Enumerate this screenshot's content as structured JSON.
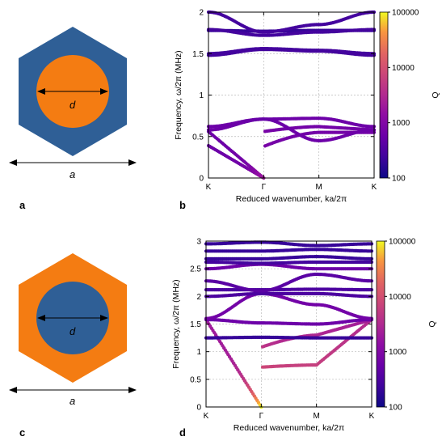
{
  "panels": {
    "a": "a",
    "b": "b",
    "c": "c",
    "d": "d"
  },
  "unit_cells": [
    {
      "id": "a",
      "hexagon_color": "#2f5f96",
      "inclusion_color": "#f47c12",
      "inner_label": "d",
      "outer_label": "a",
      "inclusion_diameter_ratio": 0.56
    },
    {
      "id": "c",
      "hexagon_color": "#f47c12",
      "inclusion_color": "#2f5f96",
      "inner_label": "d",
      "outer_label": "a",
      "inclusion_diameter_ratio": 0.56
    }
  ],
  "colorbar": {
    "label": "Q",
    "ticks": [
      "100000",
      "10000",
      "1000",
      "100"
    ],
    "range": [
      100,
      100000
    ],
    "scale": "log",
    "colormap": "plasma"
  },
  "chart_data": [
    {
      "id": "b",
      "type": "scatter",
      "xlabel": "Reduced wavenumber, ka/2π",
      "ylabel": "Frequency, ω/2π (MHz)",
      "x_tick_labels": [
        "K",
        "Γ",
        "M",
        "K"
      ],
      "x_tick_positions": [
        0,
        1,
        2,
        3
      ],
      "xlim": [
        0,
        3
      ],
      "ylim": [
        0,
        2
      ],
      "y_ticks": [
        "0",
        "0.5",
        "1",
        "1.5",
        "2"
      ],
      "y_tick_values": [
        0,
        0.5,
        1,
        1.5,
        2
      ],
      "grid": true,
      "bands": [
        {
          "y": [
            0.39,
            0.0,
            0.38,
            0.55,
            0.55
          ],
          "q": [
            600,
            2000,
            800,
            700,
            700
          ]
        },
        {
          "y": [
            0.56,
            0.0,
            0.56,
            0.62,
            0.58
          ],
          "q": [
            600,
            2000,
            800,
            700,
            700
          ]
        },
        {
          "y": [
            0.58,
            0.71,
            0.71,
            0.45,
            0.58
          ],
          "q": [
            600,
            500,
            500,
            600,
            600
          ]
        },
        {
          "y": [
            0.62,
            0.71,
            0.71,
            0.72,
            0.62
          ],
          "q": [
            600,
            500,
            500,
            600,
            600
          ]
        },
        {
          "y": [
            1.48,
            1.55,
            1.55,
            1.53,
            1.48
          ],
          "q": [
            250,
            250,
            250,
            250,
            250
          ]
        },
        {
          "y": [
            1.5,
            1.56,
            1.56,
            1.54,
            1.5
          ],
          "q": [
            250,
            250,
            250,
            250,
            250
          ]
        },
        {
          "y": [
            1.78,
            1.77,
            1.77,
            1.78,
            1.78
          ],
          "q": [
            200,
            200,
            200,
            200,
            200
          ]
        },
        {
          "y": [
            1.79,
            1.72,
            1.72,
            1.76,
            1.79
          ],
          "q": [
            250,
            250,
            250,
            250,
            250
          ]
        },
        {
          "y": [
            2.0,
            1.76,
            1.76,
            1.85,
            2.0
          ],
          "q": [
            250,
            250,
            250,
            250,
            250
          ]
        }
      ],
      "band_shapes": [
        "acoustic1",
        "acoustic2",
        "opt1",
        "opt2",
        "flat",
        "flat",
        "flat",
        "flat",
        "upper"
      ]
    },
    {
      "id": "d",
      "type": "scatter",
      "xlabel": "Reduced wavenumber, ka/2π",
      "ylabel": "Frequency, ω/2π (MHz)",
      "x_tick_labels": [
        "K",
        "Γ",
        "M",
        "K"
      ],
      "x_tick_positions": [
        0,
        1,
        2,
        3
      ],
      "xlim": [
        0,
        3
      ],
      "ylim": [
        0,
        3
      ],
      "y_ticks": [
        "0",
        "0.5",
        "1",
        "1.5",
        "2",
        "2.5",
        "3"
      ],
      "y_tick_values": [
        0,
        0.5,
        1,
        1.5,
        2,
        2.5,
        3
      ],
      "grid": true,
      "bands": [
        {
          "y": [
            1.58,
            0.0,
            0.72,
            0.76,
            1.58
          ],
          "q": [
            3000,
            100000,
            8000,
            6000,
            3000
          ]
        },
        {
          "y": [
            1.58,
            0.0,
            1.08,
            1.3,
            1.58
          ],
          "q": [
            2000,
            100000,
            5000,
            3000,
            2000
          ]
        },
        {
          "y": [
            1.58,
            1.52,
            1.52,
            1.5,
            1.58
          ],
          "q": [
            600,
            600,
            600,
            600,
            600
          ]
        },
        {
          "y": [
            1.25,
            1.26,
            1.26,
            1.25,
            1.25
          ],
          "q": [
            200,
            200,
            200,
            200,
            200
          ]
        },
        {
          "y": [
            1.6,
            2.05,
            2.05,
            1.85,
            1.6
          ],
          "q": [
            700,
            600,
            600,
            700,
            700
          ]
        },
        {
          "y": [
            2.0,
            2.05,
            2.05,
            2.05,
            2.0
          ],
          "q": [
            300,
            300,
            300,
            300,
            300
          ]
        },
        {
          "y": [
            2.12,
            2.12,
            2.12,
            2.13,
            2.12
          ],
          "q": [
            300,
            300,
            300,
            300,
            300
          ]
        },
        {
          "y": [
            2.28,
            2.1,
            2.1,
            2.4,
            2.28
          ],
          "q": [
            400,
            400,
            400,
            400,
            400
          ]
        },
        {
          "y": [
            2.5,
            2.58,
            2.58,
            2.5,
            2.5
          ],
          "q": [
            600,
            600,
            600,
            600,
            600
          ]
        },
        {
          "y": [
            2.62,
            2.6,
            2.6,
            2.62,
            2.62
          ],
          "q": [
            250,
            250,
            250,
            250,
            250
          ]
        },
        {
          "y": [
            2.68,
            2.68,
            2.68,
            2.72,
            2.68
          ],
          "q": [
            200,
            200,
            200,
            200,
            200
          ]
        },
        {
          "y": [
            2.82,
            2.82,
            2.82,
            2.85,
            2.82
          ],
          "q": [
            200,
            200,
            200,
            200,
            200
          ]
        },
        {
          "y": [
            2.95,
            2.98,
            2.98,
            2.92,
            2.95
          ],
          "q": [
            200,
            200,
            200,
            200,
            200
          ]
        }
      ],
      "band_shapes": [
        "acousticA",
        "acousticB",
        "flatish",
        "flat",
        "opt",
        "flat",
        "flat",
        "opt",
        "flat",
        "flat",
        "flat",
        "flat",
        "flat"
      ]
    }
  ]
}
